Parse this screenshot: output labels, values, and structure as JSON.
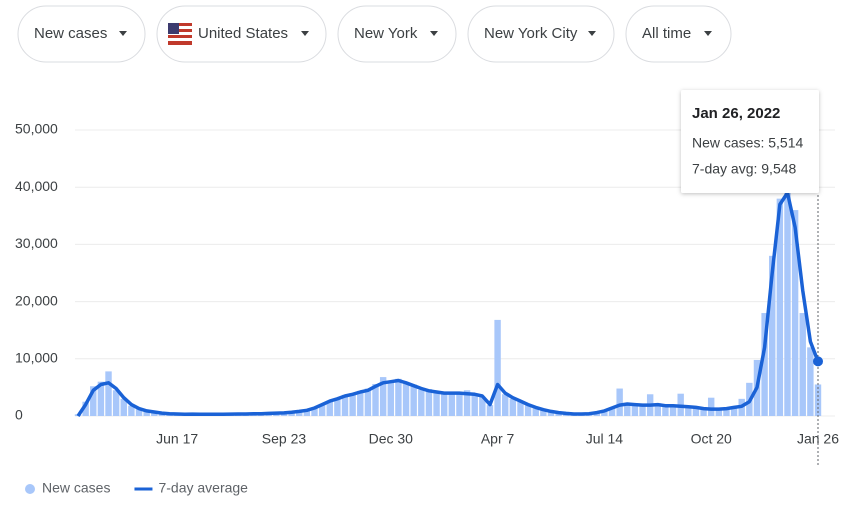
{
  "filters": [
    "New cases",
    "United States",
    "New York",
    "New York City",
    "All time"
  ],
  "tooltip": {
    "date": "Jan 26, 2022",
    "lines": [
      "New cases: 5,514",
      "7-day avg: 9,548"
    ]
  },
  "chart_data": {
    "type": "combo",
    "categories": [
      null,
      null,
      null,
      null,
      null,
      null,
      null,
      null,
      null,
      null,
      null,
      null,
      null,
      "Jun 17",
      null,
      null,
      null,
      null,
      null,
      null,
      null,
      null,
      null,
      null,
      null,
      null,
      null,
      "Sep 23",
      null,
      null,
      null,
      null,
      null,
      null,
      null,
      null,
      null,
      null,
      null,
      null,
      null,
      "Dec 30",
      null,
      null,
      null,
      null,
      null,
      null,
      null,
      null,
      null,
      null,
      null,
      null,
      null,
      "Apr 7",
      null,
      null,
      null,
      null,
      null,
      null,
      null,
      null,
      null,
      null,
      null,
      null,
      null,
      "Jul 14",
      null,
      null,
      null,
      null,
      null,
      null,
      null,
      null,
      null,
      null,
      null,
      null,
      null,
      "Oct 20",
      null,
      null,
      null,
      null,
      null,
      null,
      null,
      null,
      null,
      null,
      null,
      null,
      null,
      "Jan 26"
    ],
    "series": [
      {
        "name": "New cases",
        "type": "bar",
        "color": "#a8c7fa",
        "values": [
          300,
          2500,
          5200,
          6000,
          7800,
          4500,
          3000,
          1800,
          1200,
          800,
          650,
          450,
          380,
          330,
          300,
          350,
          280,
          300,
          320,
          300,
          350,
          330,
          360,
          400,
          420,
          480,
          520,
          600,
          700,
          850,
          1100,
          1500,
          2100,
          2700,
          3100,
          3700,
          4000,
          4400,
          4800,
          5600,
          6800,
          6200,
          6500,
          5600,
          5500,
          4600,
          4700,
          4100,
          4200,
          3900,
          4100,
          4500,
          3700,
          3300,
          1900,
          16800,
          3800,
          3000,
          2500,
          1900,
          1400,
          1000,
          750,
          550,
          420,
          340,
          360,
          420,
          650,
          950,
          1500,
          4800,
          2200,
          1900,
          2100,
          3800,
          2200,
          1700,
          1900,
          3900,
          1500,
          1400,
          1200,
          3200,
          1100,
          1400,
          1600,
          3000,
          5800,
          9800,
          18000,
          28000,
          38000,
          41000,
          36000,
          18000,
          12000,
          5514
        ]
      },
      {
        "name": "7-day average",
        "type": "line",
        "color": "#1a62d6",
        "values": [
          0,
          2000,
          4500,
          5500,
          5800,
          4800,
          3200,
          2000,
          1300,
          900,
          700,
          500,
          400,
          350,
          320,
          330,
          300,
          300,
          300,
          320,
          330,
          350,
          350,
          380,
          400,
          450,
          500,
          550,
          650,
          800,
          1000,
          1400,
          2000,
          2600,
          3000,
          3500,
          3800,
          4200,
          4500,
          5200,
          5800,
          6000,
          6200,
          5800,
          5300,
          4800,
          4400,
          4200,
          4000,
          4000,
          4000,
          3900,
          3800,
          3500,
          2000,
          5500,
          4000,
          3200,
          2600,
          2000,
          1500,
          1100,
          800,
          600,
          450,
          350,
          350,
          400,
          600,
          900,
          1400,
          1900,
          2100,
          2000,
          1900,
          1900,
          2000,
          1800,
          1800,
          1700,
          1600,
          1500,
          1300,
          1200,
          1200,
          1300,
          1500,
          1700,
          2500,
          5000,
          12000,
          25000,
          37000,
          39000,
          33000,
          22000,
          13000,
          9548
        ]
      }
    ],
    "ylim": [
      0,
      50000
    ],
    "yticks": [
      0,
      {
        "value": 10000,
        "label": "10,000"
      },
      {
        "value": 20000,
        "label": "20,000"
      },
      {
        "value": 30000,
        "label": "30,000"
      },
      {
        "value": 40000,
        "label": "40,000"
      },
      {
        "value": 50000,
        "label": "50,000"
      }
    ],
    "grid": true
  }
}
